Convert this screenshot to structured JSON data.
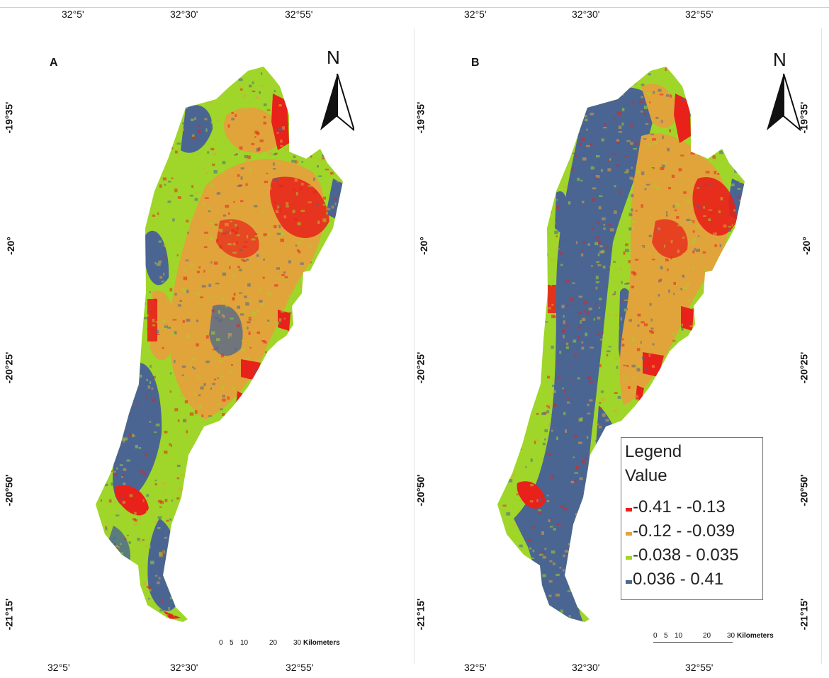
{
  "panels": [
    {
      "label": "A",
      "north_label": "N",
      "longitude_labels": [
        "32°5'",
        "32°30'",
        "32°55'"
      ],
      "latitude_labels": [
        "-19°35'",
        "-20°",
        "-20°25'",
        "-20°50'",
        "-21°15'"
      ],
      "scale_ticks": [
        "0",
        "5",
        "10",
        "20",
        "30"
      ],
      "scale_unit": "Kilometers"
    },
    {
      "label": "B",
      "north_label": "N",
      "longitude_labels": [
        "32°5'",
        "32°30'",
        "32°55'"
      ],
      "latitude_labels": [
        "-19°35'",
        "-20°",
        "-20°25'",
        "-20°50'",
        "-21°15'"
      ],
      "scale_ticks": [
        "0",
        "5",
        "10",
        "20",
        "30"
      ],
      "scale_unit": "Kilometers"
    }
  ],
  "legend": {
    "title": "Legend",
    "subtitle": "Value",
    "classes": [
      {
        "label": "-0.41 - -0.13",
        "color": "#e8211b"
      },
      {
        "label": "-0.12 - -0.039",
        "color": "#e0a43a"
      },
      {
        "label": "-0.038 - 0.035",
        "color": "#9fd629"
      },
      {
        "label": "0.036 - 0.41",
        "color": "#4a6592"
      }
    ]
  }
}
